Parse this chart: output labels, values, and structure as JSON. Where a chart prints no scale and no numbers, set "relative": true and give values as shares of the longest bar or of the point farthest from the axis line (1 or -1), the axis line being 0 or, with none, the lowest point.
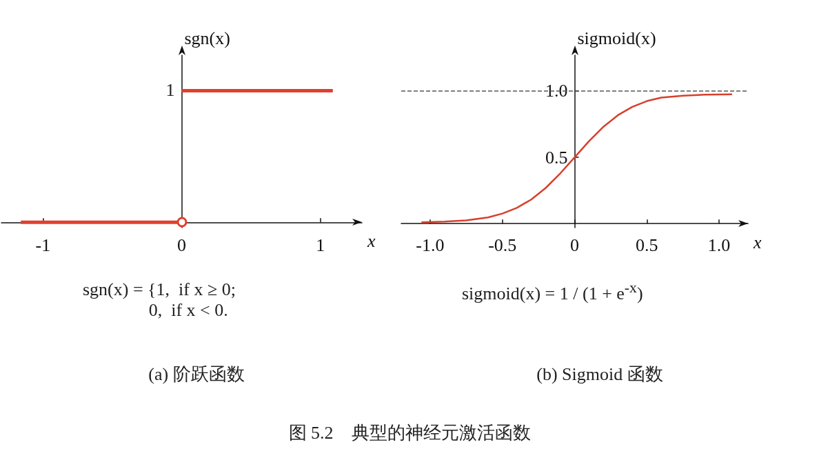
{
  "chart_data": [
    {
      "type": "line",
      "title": "(a) 阶跃函数",
      "xlabel": "x",
      "ylabel": "sgn(x)",
      "relative": true,
      "xlim": [
        -1.3,
        1.3
      ],
      "xticks": [
        -1,
        0,
        1
      ],
      "marker": "none",
      "line_style": "solid",
      "series": [
        {
          "color": "#e0402c",
          "x": [
            -1.16,
            0,
            null,
            0,
            1.09
          ],
          "values": [
            0,
            0,
            null,
            1,
            1
          ]
        }
      ],
      "annotations": [
        {
          "text": "1",
          "x": 0,
          "y": 1
        },
        "sgn(x) = {1,  if x ≥ 0;\n             0,  if x < 0.",
        "图 5.2　典型的神经元激活函数"
      ]
    },
    {
      "type": "line",
      "title": "(b) Sigmoid 函数",
      "xlabel": "x",
      "ylabel": "sigmoid(x)",
      "xlim": [
        -1.2,
        1.2
      ],
      "ylim": [
        -0.03,
        1.27
      ],
      "xticks": [
        {
          "value": -1,
          "label": "-1.0"
        },
        -0.5,
        0,
        0.5,
        {
          "value": 1,
          "label": "1.0"
        }
      ],
      "yticks": [
        0.5,
        {
          "value": 1,
          "label": "1.0"
        }
      ],
      "marker": "none",
      "line_style": "solid",
      "series": [
        {
          "color": "#d6402c",
          "x": [
            -1.06,
            -0.9,
            -0.75,
            -0.6,
            -0.5,
            -0.4,
            -0.3,
            -0.2,
            -0.1,
            0,
            0.1,
            0.2,
            0.3,
            0.4,
            0.5,
            0.6,
            0.75,
            0.9,
            1.09
          ],
          "values": [
            0.01,
            0.015,
            0.025,
            0.047,
            0.076,
            0.119,
            0.182,
            0.269,
            0.378,
            0.5,
            0.622,
            0.731,
            0.818,
            0.881,
            0.924,
            0.95,
            0.965,
            0.972,
            0.975
          ]
        }
      ],
      "ref_lines": [
        {
          "axis": "y",
          "value": 1,
          "label": null,
          "color": "#555555",
          "line_style": "dashed"
        }
      ],
      "annotations": [
        "sigmoid(x) = 1 / (1 + e$^{-x}$)"
      ]
    }
  ]
}
